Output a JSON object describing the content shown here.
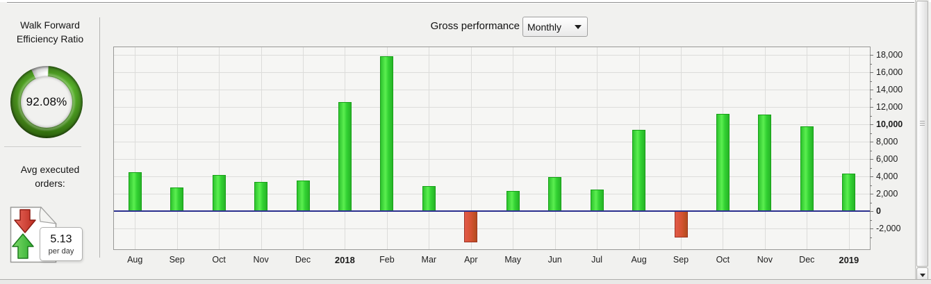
{
  "sidebar": {
    "wfer_title": "Walk Forward Efficiency Ratio",
    "wfer_value": "92.08%",
    "wfer_percent": 92.08,
    "avg_orders_label": "Avg executed orders:",
    "avg_orders_value": "5.13",
    "avg_orders_unit": "per day"
  },
  "header": {
    "chart_title": "Gross performance",
    "period_value": "Monthly"
  },
  "chart_data": {
    "type": "bar",
    "title": "Gross performance",
    "categories": [
      "Aug",
      "Sep",
      "Oct",
      "Nov",
      "Dec",
      "2018",
      "Feb",
      "Mar",
      "Apr",
      "May",
      "Jun",
      "Jul",
      "Aug",
      "Sep",
      "Oct",
      "Nov",
      "Dec",
      "2019"
    ],
    "bold_categories": [
      "2018",
      "2019"
    ],
    "values": [
      4500,
      2700,
      4200,
      3400,
      3500,
      12600,
      17900,
      2900,
      -3600,
      2300,
      3900,
      2500,
      9400,
      -3000,
      11200,
      11100,
      9800,
      4300
    ],
    "ylim": [
      -4400,
      18900
    ],
    "yticks_labeled": [
      -2000,
      0,
      2000,
      4000,
      6000,
      8000,
      10000,
      12000,
      14000,
      16000,
      18000
    ],
    "bold_yticks": [
      0,
      10000
    ],
    "ytick_interval": 2000,
    "axis_side": "right",
    "grid": true,
    "positive_color": "#33d233",
    "negative_color": "#d45231",
    "zero_line_color": "#2b2f8e"
  },
  "colors": {
    "gauge_green": "#4a9520",
    "accent_navy": "#2b2f8e"
  },
  "icons": {
    "orders_icon": "page-with-up-down-arrows",
    "dropdown_arrow": "triangle-down",
    "scroll_down_arrow": "triangle-down"
  }
}
